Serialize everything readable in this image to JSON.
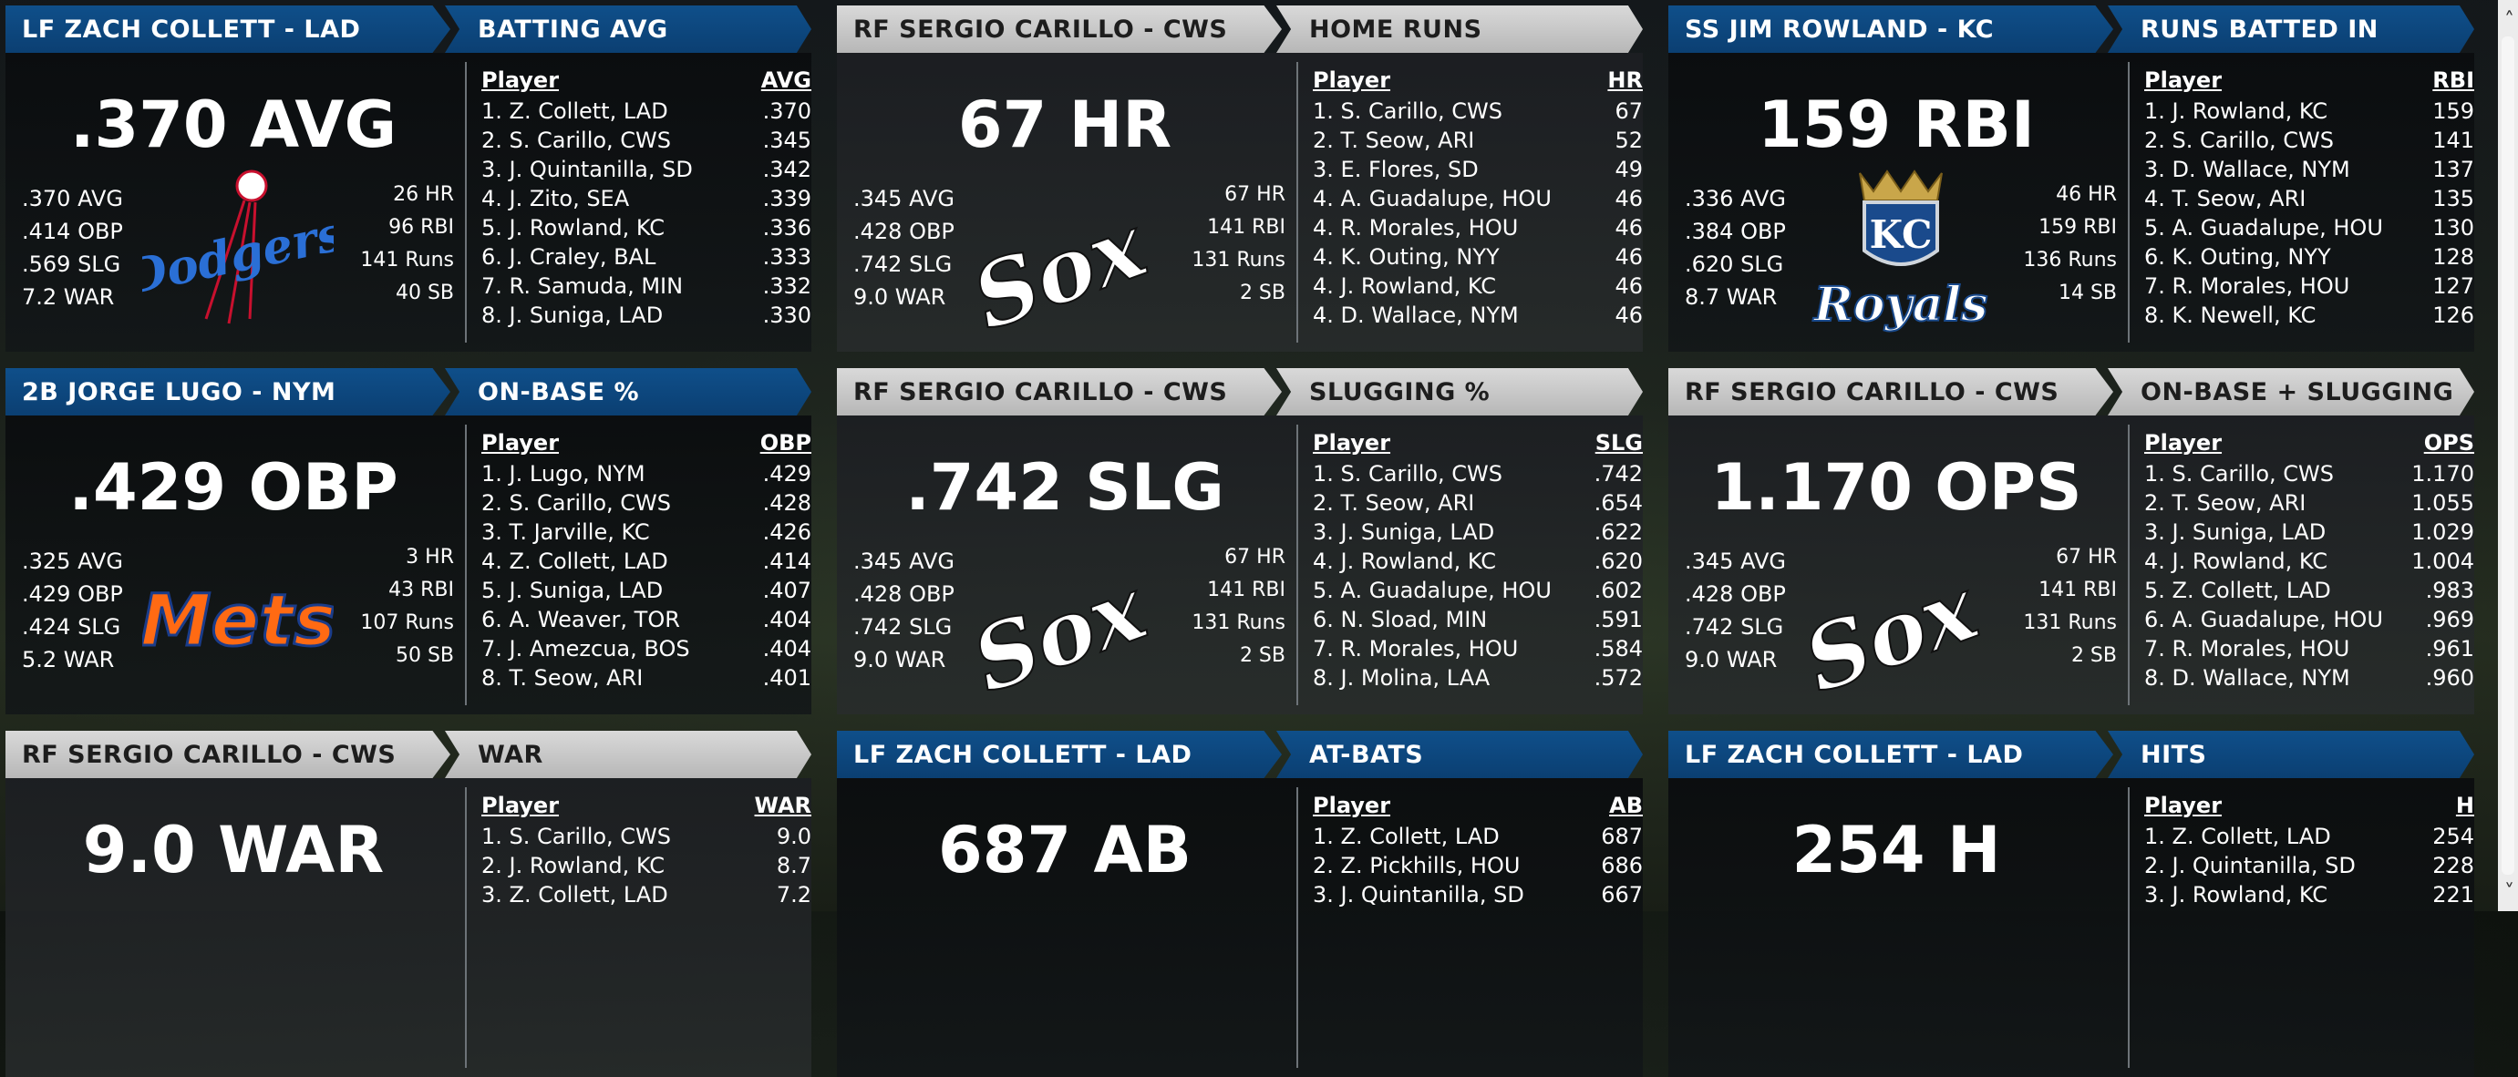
{
  "cards": [
    {
      "player_header": "LF ZACH COLLETT - LAD",
      "player_header_style": "blue",
      "stat_header": "BATTING AVG",
      "stat_header_style": "blue",
      "big_stat": ".370 AVG",
      "left_stats": [
        ".370 AVG",
        ".414 OBP",
        ".569 SLG",
        "7.2 WAR"
      ],
      "right_stats": [
        "26 HR",
        "96 RBI",
        "141 Runs",
        "40 SB"
      ],
      "logo": "dodgers-logo",
      "logo_text": "Dodgers",
      "leaders_col_player": "Player",
      "leaders_col_stat": "AVG",
      "leaders": [
        {
          "name": "1. Z. Collett, LAD",
          "value": ".370"
        },
        {
          "name": "2. S. Carillo, CWS",
          "value": ".345"
        },
        {
          "name": "3. J. Quintanilla, SD",
          "value": ".342"
        },
        {
          "name": "4. J. Zito, SEA",
          "value": ".339"
        },
        {
          "name": "5. J. Rowland, KC",
          "value": ".336"
        },
        {
          "name": "6. J. Craley, BAL",
          "value": ".333"
        },
        {
          "name": "7. R. Samuda, MIN",
          "value": ".332"
        },
        {
          "name": "8. J. Suniga, LAD",
          "value": ".330"
        }
      ]
    },
    {
      "player_header": "RF SERGIO CARILLO - CWS",
      "player_header_style": "gray",
      "stat_header": "HOME RUNS",
      "stat_header_style": "gray",
      "big_stat": "67 HR",
      "left_stats": [
        ".345 AVG",
        ".428 OBP",
        ".742 SLG",
        "9.0 WAR"
      ],
      "right_stats": [
        "67 HR",
        "141 RBI",
        "131 Runs",
        "2 SB"
      ],
      "logo": "white-sox-logo",
      "logo_text": "Sox",
      "leaders_col_player": "Player",
      "leaders_col_stat": "HR",
      "leaders": [
        {
          "name": "1. S. Carillo, CWS",
          "value": "67"
        },
        {
          "name": "2. T. Seow, ARI",
          "value": "52"
        },
        {
          "name": "3. E. Flores, SD",
          "value": "49"
        },
        {
          "name": "4. A. Guadalupe, HOU",
          "value": "46"
        },
        {
          "name": "4. R. Morales, HOU",
          "value": "46"
        },
        {
          "name": "4. K. Outing, NYY",
          "value": "46"
        },
        {
          "name": "4. J. Rowland, KC",
          "value": "46"
        },
        {
          "name": "4. D. Wallace, NYM",
          "value": "46"
        }
      ]
    },
    {
      "player_header": "SS JIM ROWLAND - KC",
      "player_header_style": "blue",
      "stat_header": "RUNS BATTED IN",
      "stat_header_style": "blue",
      "big_stat": "159 RBI",
      "left_stats": [
        ".336 AVG",
        ".384 OBP",
        ".620 SLG",
        "8.7 WAR"
      ],
      "right_stats": [
        "46 HR",
        "159 RBI",
        "136 Runs",
        "14 SB"
      ],
      "logo": "royals-logo",
      "logo_text": "Royals",
      "logo_sub": "KC",
      "leaders_col_player": "Player",
      "leaders_col_stat": "RBI",
      "leaders": [
        {
          "name": "1. J. Rowland, KC",
          "value": "159"
        },
        {
          "name": "2. S. Carillo, CWS",
          "value": "141"
        },
        {
          "name": "3. D. Wallace, NYM",
          "value": "137"
        },
        {
          "name": "4. T. Seow, ARI",
          "value": "135"
        },
        {
          "name": "5. A. Guadalupe, HOU",
          "value": "130"
        },
        {
          "name": "6. K. Outing, NYY",
          "value": "128"
        },
        {
          "name": "7. R. Morales, HOU",
          "value": "127"
        },
        {
          "name": "8. K. Newell, KC",
          "value": "126"
        }
      ]
    },
    {
      "player_header": "2B JORGE LUGO - NYM",
      "player_header_style": "blue",
      "stat_header": "ON-BASE %",
      "stat_header_style": "blue",
      "big_stat": ".429 OBP",
      "left_stats": [
        ".325 AVG",
        ".429 OBP",
        ".424 SLG",
        "5.2 WAR"
      ],
      "right_stats": [
        "3 HR",
        "43 RBI",
        "107 Runs",
        "50 SB"
      ],
      "logo": "mets-logo",
      "logo_text": "Mets",
      "leaders_col_player": "Player",
      "leaders_col_stat": "OBP",
      "leaders": [
        {
          "name": "1. J. Lugo, NYM",
          "value": ".429"
        },
        {
          "name": "2. S. Carillo, CWS",
          "value": ".428"
        },
        {
          "name": "3. T. Jarville, KC",
          "value": ".426"
        },
        {
          "name": "4. Z. Collett, LAD",
          "value": ".414"
        },
        {
          "name": "5. J. Suniga, LAD",
          "value": ".407"
        },
        {
          "name": "6. A. Weaver, TOR",
          "value": ".404"
        },
        {
          "name": "7. J. Amezcua, BOS",
          "value": ".404"
        },
        {
          "name": "8. T. Seow, ARI",
          "value": ".401"
        }
      ]
    },
    {
      "player_header": "RF SERGIO CARILLO - CWS",
      "player_header_style": "gray",
      "stat_header": "SLUGGING %",
      "stat_header_style": "gray",
      "big_stat": ".742 SLG",
      "left_stats": [
        ".345 AVG",
        ".428 OBP",
        ".742 SLG",
        "9.0 WAR"
      ],
      "right_stats": [
        "67 HR",
        "141 RBI",
        "131 Runs",
        "2 SB"
      ],
      "logo": "white-sox-logo",
      "logo_text": "Sox",
      "leaders_col_player": "Player",
      "leaders_col_stat": "SLG",
      "leaders": [
        {
          "name": "1. S. Carillo, CWS",
          "value": ".742"
        },
        {
          "name": "2. T. Seow, ARI",
          "value": ".654"
        },
        {
          "name": "3. J. Suniga, LAD",
          "value": ".622"
        },
        {
          "name": "4. J. Rowland, KC",
          "value": ".620"
        },
        {
          "name": "5. A. Guadalupe, HOU",
          "value": ".602"
        },
        {
          "name": "6. N. Sload, MIN",
          "value": ".591"
        },
        {
          "name": "7. R. Morales, HOU",
          "value": ".584"
        },
        {
          "name": "8. J. Molina, LAA",
          "value": ".572"
        }
      ]
    },
    {
      "player_header": "RF SERGIO CARILLO - CWS",
      "player_header_style": "gray",
      "stat_header": "ON-BASE + SLUGGING",
      "stat_header_style": "gray",
      "big_stat": "1.170 OPS",
      "left_stats": [
        ".345 AVG",
        ".428 OBP",
        ".742 SLG",
        "9.0 WAR"
      ],
      "right_stats": [
        "67 HR",
        "141 RBI",
        "131 Runs",
        "2 SB"
      ],
      "logo": "white-sox-logo",
      "logo_text": "Sox",
      "leaders_col_player": "Player",
      "leaders_col_stat": "OPS",
      "leaders": [
        {
          "name": "1. S. Carillo, CWS",
          "value": "1.170"
        },
        {
          "name": "2. T. Seow, ARI",
          "value": "1.055"
        },
        {
          "name": "3. J. Suniga, LAD",
          "value": "1.029"
        },
        {
          "name": "4. J. Rowland, KC",
          "value": "1.004"
        },
        {
          "name": "5. Z. Collett, LAD",
          "value": ".983"
        },
        {
          "name": "6. A. Guadalupe, HOU",
          "value": ".969"
        },
        {
          "name": "7. R. Morales, HOU",
          "value": ".961"
        },
        {
          "name": "8. D. Wallace, NYM",
          "value": ".960"
        }
      ]
    },
    {
      "player_header": "RF SERGIO CARILLO - CWS",
      "player_header_style": "gray",
      "stat_header": "WAR",
      "stat_header_style": "gray",
      "big_stat": "9.0 WAR",
      "left_stats": [],
      "right_stats": [],
      "logo": "",
      "leaders_col_player": "Player",
      "leaders_col_stat": "WAR",
      "leaders": [
        {
          "name": "1. S. Carillo, CWS",
          "value": "9.0"
        },
        {
          "name": "2. J. Rowland, KC",
          "value": "8.7"
        },
        {
          "name": "3. Z. Collett, LAD",
          "value": "7.2"
        }
      ]
    },
    {
      "player_header": "LF ZACH COLLETT - LAD",
      "player_header_style": "blue",
      "stat_header": "AT-BATS",
      "stat_header_style": "blue",
      "big_stat": "687 AB",
      "left_stats": [],
      "right_stats": [],
      "logo": "",
      "leaders_col_player": "Player",
      "leaders_col_stat": "AB",
      "leaders": [
        {
          "name": "1. Z. Collett, LAD",
          "value": "687"
        },
        {
          "name": "2. Z. Pickhills, HOU",
          "value": "686"
        },
        {
          "name": "3. J. Quintanilla, SD",
          "value": "667"
        }
      ]
    },
    {
      "player_header": "LF ZACH COLLETT - LAD",
      "player_header_style": "blue",
      "stat_header": "HITS",
      "stat_header_style": "blue",
      "big_stat": "254 H",
      "left_stats": [],
      "right_stats": [],
      "logo": "",
      "leaders_col_player": "Player",
      "leaders_col_stat": "H",
      "leaders": [
        {
          "name": "1. Z. Collett, LAD",
          "value": "254"
        },
        {
          "name": "2. J. Quintanilla, SD",
          "value": "228"
        },
        {
          "name": "3. J. Rowland, KC",
          "value": "221"
        }
      ]
    }
  ],
  "scrollbar": {
    "up_icon": "chevron-up-icon",
    "down_icon": "chevron-down-icon"
  }
}
